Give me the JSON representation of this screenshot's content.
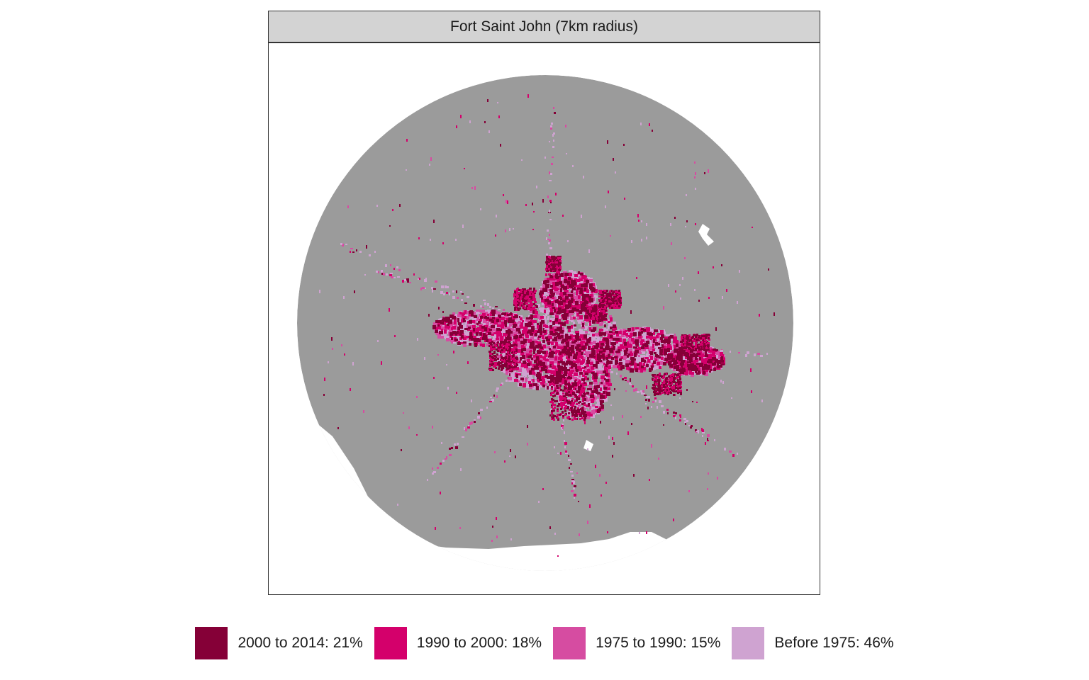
{
  "panel": {
    "title": "Fort Saint John (7km radius)"
  },
  "map": {
    "background_color": "#9b9b9b",
    "water_color": "#ffffff",
    "center_label": "",
    "zoom": ""
  },
  "legend": {
    "position": "bottom",
    "items": [
      {
        "label": "2000 to 2014: 21%",
        "color": "#850037",
        "share": 21
      },
      {
        "label": "1990 to 2000: 18%",
        "color": "#d4006b",
        "share": 18
      },
      {
        "label": "1975 to 1990: 15%",
        "color": "#d64ca1",
        "share": 15
      },
      {
        "label": "Before 1975: 46%",
        "color": "#cfa3d1",
        "share": 46
      }
    ]
  }
}
